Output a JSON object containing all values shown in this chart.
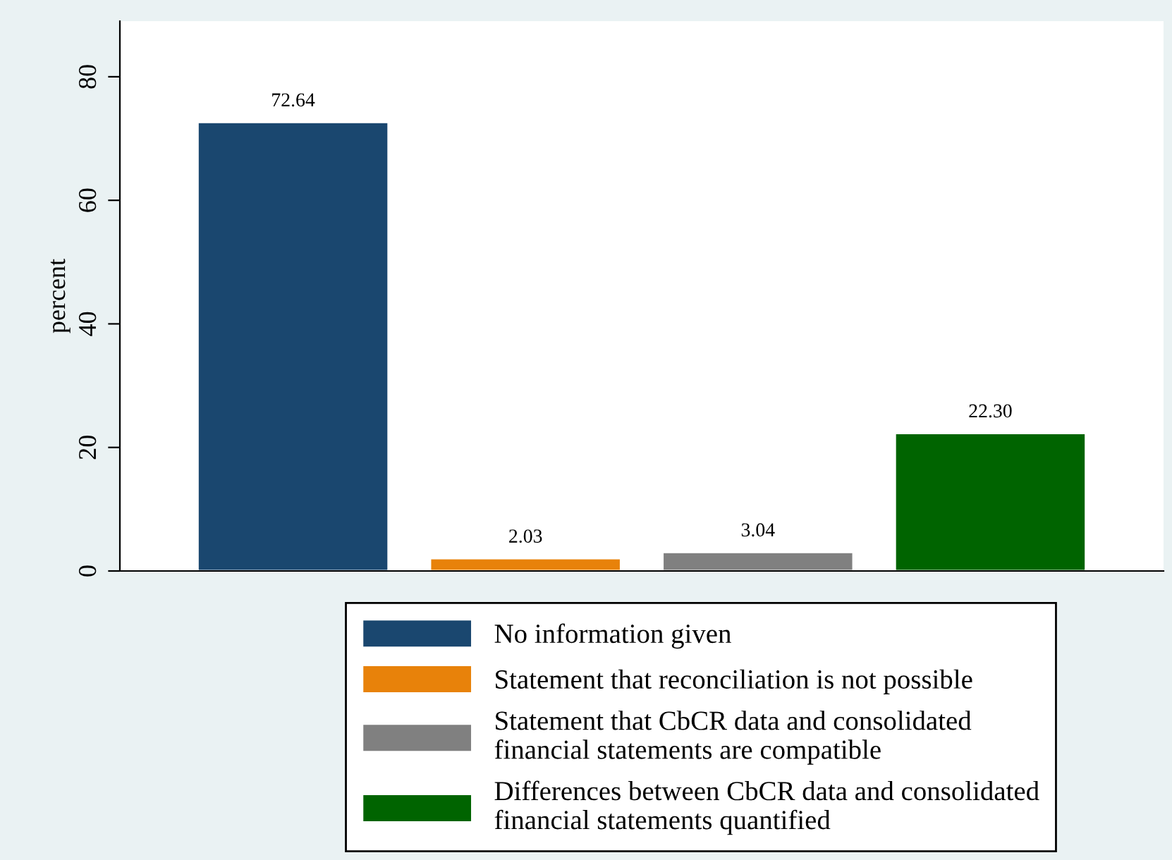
{
  "chart_data": {
    "type": "bar",
    "ylabel": "percent",
    "categories": [
      null,
      null,
      null,
      null
    ],
    "series": [
      {
        "name": "No information given",
        "color": "#1a476f",
        "values": [
          72.64,
          null,
          null,
          null
        ],
        "value_labels": [
          "72.64",
          null,
          null,
          null
        ]
      },
      {
        "name": "Statement that reconciliation is not possible",
        "color": "#e8820a",
        "values": [
          null,
          2.03,
          null,
          null
        ],
        "value_labels": [
          null,
          "2.03",
          null,
          null
        ]
      },
      {
        "name": "Statement that CbCR data and consolidated\nfinancial statements are compatible",
        "color": "#808080",
        "values": [
          null,
          null,
          3.04,
          null
        ],
        "value_labels": [
          null,
          null,
          "3.04",
          null
        ]
      },
      {
        "name": "Differences between CbCR data and consolidated\nfinancial statements quantified",
        "color": "#006400",
        "values": [
          null,
          null,
          null,
          22.3
        ],
        "value_labels": [
          null,
          null,
          null,
          "22.30"
        ]
      }
    ],
    "ylim": [
      0,
      89
    ],
    "yticks": [
      0,
      20,
      40,
      60,
      80
    ],
    "legend": "bottom",
    "grid": false
  }
}
